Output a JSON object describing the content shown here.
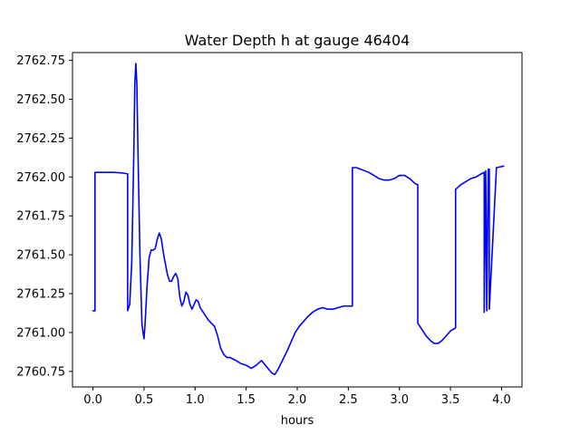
{
  "chart_data": {
    "type": "line",
    "title": "Water Depth h at gauge 46404",
    "xlabel": "hours",
    "ylabel": "",
    "xlim": [
      -0.2,
      4.2
    ],
    "ylim": [
      2760.65,
      2762.8
    ],
    "x_ticks": [
      0.0,
      0.5,
      1.0,
      1.5,
      2.0,
      2.5,
      3.0,
      3.5,
      4.0
    ],
    "x_tick_labels": [
      "0.0",
      "0.5",
      "1.0",
      "1.5",
      "2.0",
      "2.5",
      "3.0",
      "3.5",
      "4.0"
    ],
    "y_ticks": [
      2760.75,
      2761.0,
      2761.25,
      2761.5,
      2761.75,
      2762.0,
      2762.25,
      2762.5,
      2762.75
    ],
    "y_tick_labels": [
      "2760.75",
      "2761.00",
      "2761.25",
      "2761.50",
      "2761.75",
      "2762.00",
      "2762.25",
      "2762.50",
      "2762.75"
    ],
    "grid": false,
    "legend": "none",
    "series": [
      {
        "color": "#0000ff",
        "x": [
          0.0,
          0.02,
          0.02,
          0.2,
          0.3,
          0.34,
          0.34,
          0.36,
          0.38,
          0.4,
          0.41,
          0.42,
          0.43,
          0.44,
          0.46,
          0.48,
          0.5,
          0.51,
          0.53,
          0.55,
          0.57,
          0.59,
          0.61,
          0.63,
          0.65,
          0.67,
          0.69,
          0.71,
          0.73,
          0.75,
          0.77,
          0.79,
          0.81,
          0.83,
          0.85,
          0.87,
          0.89,
          0.91,
          0.93,
          0.95,
          0.97,
          0.99,
          1.01,
          1.03,
          1.05,
          1.07,
          1.09,
          1.11,
          1.13,
          1.16,
          1.19,
          1.22,
          1.25,
          1.28,
          1.31,
          1.34,
          1.37,
          1.4,
          1.45,
          1.5,
          1.55,
          1.6,
          1.65,
          1.7,
          1.75,
          1.78,
          1.81,
          1.84,
          1.87,
          1.9,
          1.94,
          1.98,
          2.02,
          2.06,
          2.1,
          2.15,
          2.2,
          2.25,
          2.3,
          2.35,
          2.4,
          2.45,
          2.5,
          2.54,
          2.54,
          2.58,
          2.62,
          2.66,
          2.7,
          2.75,
          2.8,
          2.85,
          2.9,
          2.95,
          3.0,
          3.05,
          3.1,
          3.15,
          3.18,
          3.18,
          3.22,
          3.26,
          3.3,
          3.34,
          3.38,
          3.42,
          3.46,
          3.5,
          3.55,
          3.55,
          3.6,
          3.65,
          3.7,
          3.75,
          3.8,
          3.83,
          3.83,
          3.845,
          3.855,
          3.855,
          3.87,
          3.88,
          3.88,
          3.95,
          4.02
        ],
        "y": [
          2761.14,
          2761.14,
          2762.03,
          2762.03,
          2762.025,
          2762.02,
          2761.14,
          2761.18,
          2761.45,
          2762.15,
          2762.6,
          2762.73,
          2762.6,
          2762.2,
          2761.5,
          2761.05,
          2760.96,
          2761.05,
          2761.3,
          2761.48,
          2761.53,
          2761.53,
          2761.54,
          2761.6,
          2761.64,
          2761.6,
          2761.51,
          2761.44,
          2761.37,
          2761.33,
          2761.33,
          2761.36,
          2761.38,
          2761.35,
          2761.23,
          2761.17,
          2761.2,
          2761.26,
          2761.24,
          2761.18,
          2761.15,
          2761.18,
          2761.21,
          2761.2,
          2761.16,
          2761.14,
          2761.12,
          2761.1,
          2761.08,
          2761.06,
          2761.04,
          2760.98,
          2760.9,
          2760.86,
          2760.84,
          2760.84,
          2760.83,
          2760.82,
          2760.8,
          2760.79,
          2760.77,
          2760.79,
          2760.82,
          2760.78,
          2760.74,
          2760.73,
          2760.76,
          2760.8,
          2760.84,
          2760.88,
          2760.94,
          2761.0,
          2761.04,
          2761.07,
          2761.1,
          2761.13,
          2761.15,
          2761.16,
          2761.15,
          2761.15,
          2761.16,
          2761.17,
          2761.17,
          2761.17,
          2762.06,
          2762.06,
          2762.05,
          2762.04,
          2762.03,
          2762.01,
          2761.99,
          2761.98,
          2761.98,
          2761.99,
          2762.01,
          2762.01,
          2761.99,
          2761.96,
          2761.95,
          2761.06,
          2761.02,
          2760.98,
          2760.95,
          2760.93,
          2760.93,
          2760.95,
          2760.98,
          2761.01,
          2761.03,
          2761.92,
          2761.95,
          2761.97,
          2761.99,
          2762.0,
          2762.02,
          2762.03,
          2761.13,
          2762.04,
          2761.14,
          2761.14,
          2762.05,
          2762.05,
          2761.15,
          2762.06,
          2762.07
        ]
      }
    ]
  }
}
